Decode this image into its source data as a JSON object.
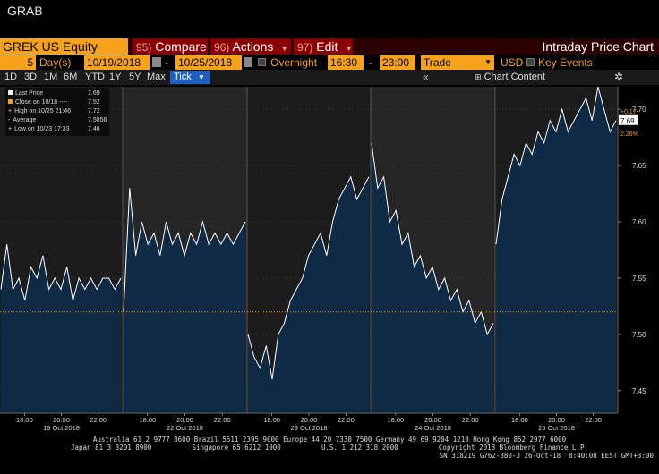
{
  "window": {
    "title": "GRAB"
  },
  "toolbar": {
    "ticker": "GREK US Equity",
    "compare": {
      "num": "95)",
      "label": "Compare"
    },
    "actions": {
      "num": "96)",
      "label": "Actions"
    },
    "edit": {
      "num": "97)",
      "label": "Edit"
    },
    "chart_title": "Intraday Price Chart"
  },
  "settings": {
    "days_count": "5",
    "days_label": "Day(s)",
    "start_date": "10/19/2018",
    "dash": "-",
    "end_date": "10/25/2018",
    "overnight_label": "Overnight",
    "start_time": "16:30",
    "end_time": "23:00",
    "source": "Trade",
    "currency": "USD",
    "key_events_label": "Key Events"
  },
  "periods": [
    "1D",
    "3D",
    "1M",
    "6M",
    "YTD",
    "1Y",
    "5Y",
    "Max"
  ],
  "tick_label": "Tick",
  "collapse_icon": "«",
  "chart_content_label": "Chart Content",
  "icons": {
    "chart_content": "chart-icon",
    "gear": "gear-icon",
    "calendar": "calendar-icon"
  },
  "colors": {
    "accent_orange": "#f7a21b",
    "toolbar_red": "#8a0000",
    "area_fill": "#0e2b48",
    "price_line": "#ffffff",
    "close_line": "#f7a21b",
    "tick_button": "#1f5fbf"
  },
  "legend": [
    {
      "label": "Last Price",
      "value": "7.69",
      "swatch": "#ffffff"
    },
    {
      "label": "Close on 10/18 ----",
      "value": "7.52",
      "swatch": "#f7a21b"
    },
    {
      "label": "High on 10/25 21:46",
      "value": "7.72",
      "swatch": "+"
    },
    {
      "label": "Average",
      "value": "7.5856",
      "swatch": "-"
    },
    {
      "label": "Low on 10/23 17:33",
      "value": "7.46",
      "swatch": "+"
    }
  ],
  "chart_data": {
    "type": "area",
    "ylim": [
      7.43,
      7.72
    ],
    "y_ticks": [
      "7.70",
      "7.65",
      "7.60",
      "7.55",
      "7.50",
      "7.45"
    ],
    "reference_close": 7.52,
    "last_price_label": "7.69",
    "change_label": "+0.17",
    "change_pct_label": "2.26%",
    "x_hour_labels": [
      "18:00",
      "20:00",
      "22:00",
      "18:00",
      "20:00",
      "22:00",
      "18:00",
      "20:00",
      "22:00",
      "18:00",
      "20:00",
      "22:00",
      "18:00",
      "20:00",
      "22:00"
    ],
    "day_labels": [
      "19 Oct 2018",
      "22 Oct 2018",
      "23 Oct 2018",
      "24 Oct 2018",
      "25 Oct 2018"
    ],
    "sessions": [
      {
        "day": "19 Oct 2018",
        "prices": [
          7.54,
          7.58,
          7.54,
          7.55,
          7.53,
          7.56,
          7.55,
          7.57,
          7.54,
          7.55,
          7.54,
          7.56,
          7.53,
          7.55,
          7.54,
          7.55,
          7.54,
          7.55,
          7.55,
          7.54,
          7.55
        ]
      },
      {
        "day": "22 Oct 2018",
        "prices": [
          7.52,
          7.63,
          7.57,
          7.6,
          7.58,
          7.59,
          7.57,
          7.6,
          7.58,
          7.59,
          7.57,
          7.59,
          7.58,
          7.6,
          7.58,
          7.59,
          7.58,
          7.59,
          7.58,
          7.59,
          7.6
        ]
      },
      {
        "day": "23 Oct 2018",
        "prices": [
          7.5,
          7.48,
          7.47,
          7.49,
          7.46,
          7.5,
          7.51,
          7.53,
          7.54,
          7.55,
          7.57,
          7.58,
          7.59,
          7.57,
          7.6,
          7.62,
          7.63,
          7.64,
          7.62,
          7.63,
          7.64
        ]
      },
      {
        "day": "24 Oct 2018",
        "prices": [
          7.67,
          7.63,
          7.64,
          7.6,
          7.61,
          7.58,
          7.59,
          7.56,
          7.57,
          7.55,
          7.56,
          7.54,
          7.55,
          7.53,
          7.54,
          7.52,
          7.53,
          7.51,
          7.52,
          7.5,
          7.51
        ]
      },
      {
        "day": "25 Oct 2018",
        "prices": [
          7.58,
          7.62,
          7.64,
          7.66,
          7.65,
          7.67,
          7.66,
          7.68,
          7.67,
          7.69,
          7.68,
          7.7,
          7.68,
          7.69,
          7.7,
          7.71,
          7.69,
          7.72,
          7.7,
          7.68,
          7.69
        ]
      }
    ]
  },
  "footer": {
    "line1": "Australia 61 2 9777 8600 Brazil 5511 2395 9000 Europe 44 20 7330 7500 Germany 49 69 9204 1210 Hong Kong 852 2977 6000",
    "line2": "Japan 81 3 3201 8900          Singapore 65 6212 1000          U.S. 1 212 318 2000          Copyright 2018 Bloomberg Finance L.P.",
    "line3": "SN 318219 G762-380-3 26-Oct-18  8:40:08 EEST GMT+3:00"
  }
}
